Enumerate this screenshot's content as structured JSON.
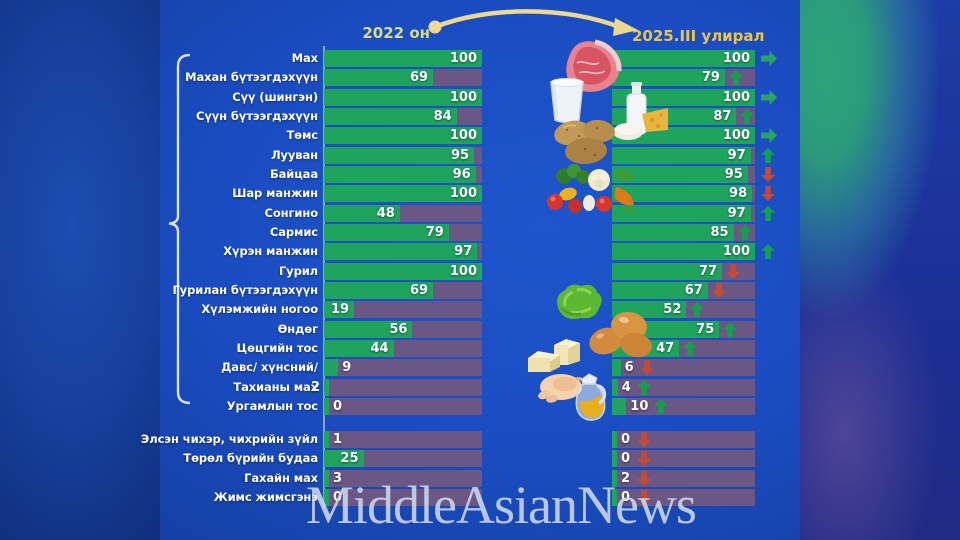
{
  "header": {
    "left_label": "2022 он",
    "right_label": "2025.III улирал"
  },
  "watermark": "MiddleAsianNews",
  "colors": {
    "bar_green": "#1ea45c",
    "bar_remainder": "#6a5784",
    "trend_up": "#12a14b",
    "trend_down": "#c64936",
    "trend_same": "#2aa55e",
    "header_left_gold": "#d9dc7e",
    "header_right_gold": "#e9c64a",
    "label_text": "#ffffff"
  },
  "food_icons": [
    "meat",
    "milk-glass",
    "dairy-products",
    "potatoes",
    "vegetables",
    "lettuce",
    "eggs",
    "butter",
    "chicken",
    "vegetable-oil"
  ],
  "chart_data": {
    "type": "bar",
    "title": "",
    "xlabel": "",
    "ylabel": "",
    "unit": "percent",
    "xlim": [
      0,
      100
    ],
    "grid": false,
    "series_labels": [
      "2022 он",
      "2025.III улирал"
    ],
    "trend_values": [
      "up",
      "down",
      "same"
    ],
    "rows": [
      {
        "label": "Мах",
        "v2022": 100,
        "v2025": 100,
        "trend": "same",
        "group": 1
      },
      {
        "label": "Махан бүтээгдэхүүн",
        "v2022": 69,
        "v2025": 79,
        "trend": "up",
        "group": 1
      },
      {
        "label": "Сүү (шингэн)",
        "v2022": 100,
        "v2025": 100,
        "trend": "same",
        "group": 1
      },
      {
        "label": "Сүүн бүтээгдэхүүн",
        "v2022": 84,
        "v2025": 87,
        "trend": "up",
        "group": 1
      },
      {
        "label": "Төмс",
        "v2022": 100,
        "v2025": 100,
        "trend": "same",
        "group": 1
      },
      {
        "label": "Лууван",
        "v2022": 95,
        "v2025": 97,
        "trend": "up",
        "group": 1
      },
      {
        "label": "Байцаа",
        "v2022": 96,
        "v2025": 95,
        "trend": "down",
        "group": 1
      },
      {
        "label": "Шар манжин",
        "v2022": 100,
        "v2025": 98,
        "trend": "down",
        "group": 1
      },
      {
        "label": "Сонгино",
        "v2022": 48,
        "v2025": 97,
        "trend": "up",
        "group": 1
      },
      {
        "label": "Сармис",
        "v2022": 79,
        "v2025": 85,
        "trend": "up",
        "group": 1
      },
      {
        "label": "Хүрэн манжин",
        "v2022": 97,
        "v2025": 100,
        "trend": "up",
        "group": 1
      },
      {
        "label": "Гурил",
        "v2022": 100,
        "v2025": 77,
        "trend": "down",
        "group": 1
      },
      {
        "label": "Гурилан бүтээгдэхүүн",
        "v2022": 69,
        "v2025": 67,
        "trend": "down",
        "group": 1
      },
      {
        "label": "Хүлэмжийн ногоо",
        "v2022": 19,
        "v2025": 52,
        "trend": "up",
        "group": 1
      },
      {
        "label": "Өндөг",
        "v2022": 56,
        "v2025": 75,
        "trend": "up",
        "group": 1
      },
      {
        "label": "Цөцгийн тос",
        "v2022": 44,
        "v2025": 47,
        "trend": "up",
        "group": 1
      },
      {
        "label": "Давс/ хүнсний/",
        "v2022": 9,
        "v2025": 6,
        "trend": "down",
        "group": 1
      },
      {
        "label": "Тахианы мах",
        "v2022": 2,
        "v2025": 4,
        "trend": "up",
        "group": 1,
        "left_value_outside": true
      },
      {
        "label": "Ургамлын тос",
        "v2022": 0,
        "v2025": 10,
        "trend": "up",
        "group": 1
      },
      {
        "label": "Элсэн чихэр, чихрийн зүйл",
        "v2022": 1,
        "v2025": 0,
        "trend": "down",
        "group": 2
      },
      {
        "label": "Төрөл бүрийн будаа",
        "v2022": 25,
        "v2025": 0,
        "trend": "down",
        "group": 2
      },
      {
        "label": "Гахайн мах",
        "v2022": 3,
        "v2025": 2,
        "trend": "down",
        "group": 2
      },
      {
        "label": "Жимс жимсгэнэ",
        "v2022": 0,
        "v2025": 0,
        "trend": "down",
        "group": 2
      }
    ]
  }
}
